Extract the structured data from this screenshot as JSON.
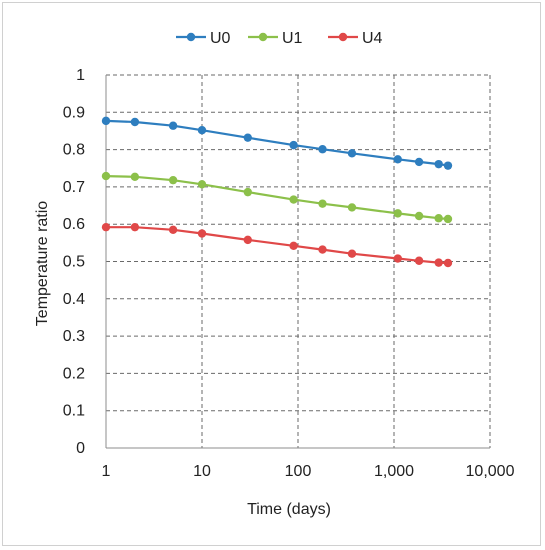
{
  "chart_data": {
    "type": "line",
    "xscale": "log",
    "xlabel": "Time (days)",
    "ylabel": "Temperature ratio",
    "xlim": [
      1,
      10000
    ],
    "ylim": [
      0,
      1
    ],
    "xticks": [
      1,
      10,
      100,
      1000,
      10000
    ],
    "xtick_labels": [
      "1",
      "10",
      "100",
      "1,000",
      "10,000"
    ],
    "yticks": [
      0,
      0.1,
      0.2,
      0.3,
      0.4,
      0.5,
      0.6,
      0.7,
      0.8,
      0.9,
      1
    ],
    "ytick_labels": [
      "0",
      "0.1",
      "0.2",
      "0.3",
      "0.4",
      "0.5",
      "0.6",
      "0.7",
      "0.8",
      "0.9",
      "1"
    ],
    "grid": true,
    "legend_position": "top",
    "x": [
      1,
      2,
      5,
      10,
      30,
      90,
      180,
      365,
      1095,
      1825,
      2920,
      3650
    ],
    "series": [
      {
        "name": "U0",
        "color": "#2e7ebf",
        "values": [
          0.877,
          0.874,
          0.864,
          0.852,
          0.832,
          0.812,
          0.801,
          0.79,
          0.774,
          0.767,
          0.761,
          0.757
        ]
      },
      {
        "name": "U1",
        "color": "#8cc04a",
        "values": [
          0.729,
          0.727,
          0.718,
          0.707,
          0.686,
          0.666,
          0.655,
          0.645,
          0.629,
          0.622,
          0.616,
          0.614
        ]
      },
      {
        "name": "U4",
        "color": "#e04848",
        "values": [
          0.592,
          0.592,
          0.585,
          0.575,
          0.558,
          0.542,
          0.532,
          0.521,
          0.508,
          0.502,
          0.497,
          0.496
        ]
      }
    ]
  }
}
